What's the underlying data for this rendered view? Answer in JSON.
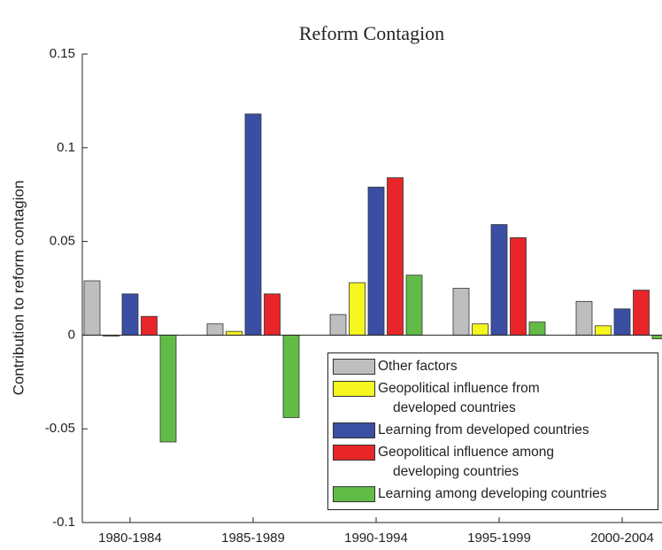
{
  "chart_data": {
    "type": "bar",
    "title": "Reform Contagion",
    "ylabel": "Contribution to reform contagion",
    "categories": [
      "1980-1984",
      "1985-1989",
      "1990-1994",
      "1995-1999",
      "2000-2004"
    ],
    "series": [
      {
        "name": "Other factors",
        "color": "#bebebe",
        "values": [
          0.029,
          0.006,
          0.011,
          0.025,
          0.018
        ]
      },
      {
        "name": "Geopolitical influence from\ndeveloped countries",
        "color": "#f5f520",
        "values": [
          -0.0005,
          0.002,
          0.028,
          0.006,
          0.005
        ]
      },
      {
        "name": "Learning from developed countries",
        "color": "#3a4fa3",
        "values": [
          0.022,
          0.118,
          0.079,
          0.059,
          0.014
        ]
      },
      {
        "name": "Geopolitical influence among\ndeveloping countries",
        "color": "#e8262a",
        "values": [
          0.01,
          0.022,
          0.084,
          0.052,
          0.024
        ]
      },
      {
        "name": "Learning among developing countries",
        "color": "#62bb47",
        "values": [
          -0.057,
          -0.044,
          0.032,
          0.007,
          -0.002
        ]
      }
    ],
    "ylim": [
      -0.1,
      0.15
    ],
    "yticks": [
      -0.1,
      -0.05,
      0,
      0.05,
      0.1,
      0.15
    ],
    "legend": "lower right"
  }
}
